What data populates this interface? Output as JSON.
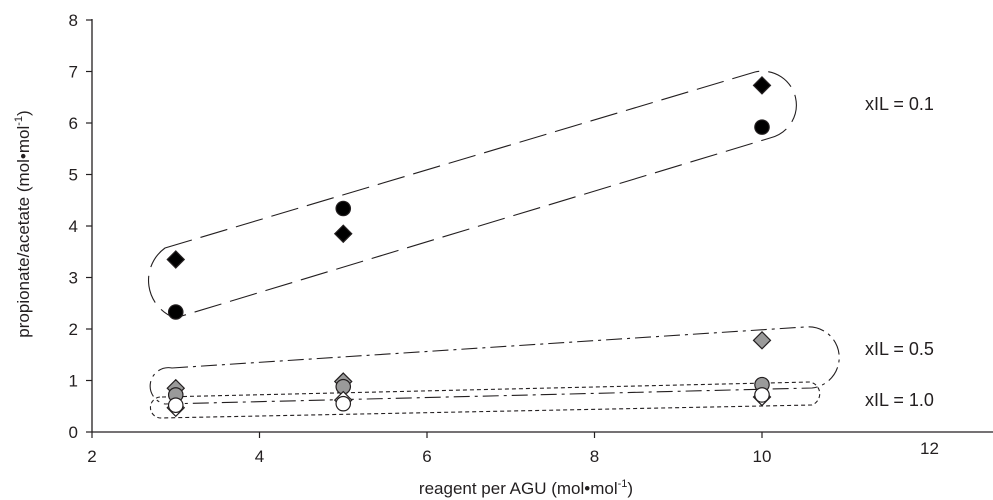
{
  "chart_data": {
    "type": "scatter",
    "xlabel": "reagent per AGU (mol•mol",
    "xlabel_sup": "-1",
    "xlabel_end": ")",
    "ylabel": "propionate/acetate (mol•mol",
    "ylabel_sup": "-1",
    "ylabel_end": ")",
    "xlim": [
      2,
      13
    ],
    "ylim": [
      0,
      8
    ],
    "xticks": [
      2,
      4,
      6,
      8,
      10,
      12
    ],
    "yticks": [
      0,
      1,
      2,
      3,
      4,
      5,
      6,
      7,
      8
    ],
    "grid": false,
    "groups": [
      {
        "label": "xIL = 0.1",
        "series": [
          {
            "marker": "diamond",
            "fill": "#000000",
            "points": [
              [
                3,
                3.35
              ],
              [
                5,
                3.85
              ],
              [
                10,
                6.73
              ]
            ]
          },
          {
            "marker": "circle",
            "fill": "#000000",
            "points": [
              [
                3,
                2.33
              ],
              [
                5,
                4.34
              ],
              [
                10,
                5.92
              ]
            ]
          }
        ]
      },
      {
        "label": "xIL = 0.5",
        "series": [
          {
            "marker": "diamond",
            "fill": "#9a9a9a",
            "points": [
              [
                3,
                0.85
              ],
              [
                5,
                0.98
              ],
              [
                10,
                1.78
              ]
            ]
          },
          {
            "marker": "circle",
            "fill": "#9a9a9a",
            "points": [
              [
                3,
                0.72
              ],
              [
                5,
                0.88
              ],
              [
                10,
                0.92
              ]
            ]
          }
        ]
      },
      {
        "label": "xIL = 1.0",
        "series": [
          {
            "marker": "diamond",
            "fill": "#ffffff",
            "points": [
              [
                3,
                0.47
              ],
              [
                5,
                0.62
              ],
              [
                10,
                0.68
              ]
            ]
          },
          {
            "marker": "circle",
            "fill": "#ffffff",
            "points": [
              [
                3,
                0.52
              ],
              [
                5,
                0.55
              ],
              [
                10,
                0.72
              ]
            ]
          }
        ]
      }
    ]
  }
}
